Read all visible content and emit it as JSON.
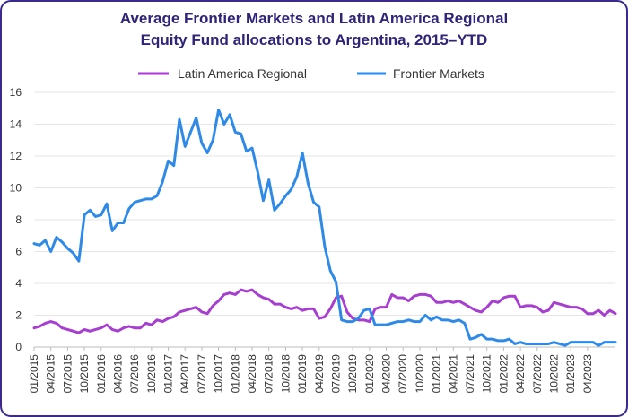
{
  "chart_data": {
    "type": "line",
    "title": [
      "Average Frontier Markets and Latin America Regional",
      "Equity Fund allocations to Argentina, 2015–YTD"
    ],
    "legend_position": "top-center",
    "grid": true,
    "ylim": [
      0,
      16
    ],
    "y_ticks": [
      0,
      2,
      4,
      6,
      8,
      10,
      12,
      14,
      16
    ],
    "x_tick_labels": [
      "01/2015",
      "04/2015",
      "07/2015",
      "10/2015",
      "01/2016",
      "04/2016",
      "07/2016",
      "10/2016",
      "01/2017",
      "04/2017",
      "07/2017",
      "10/2017",
      "01/2018",
      "04/2018",
      "07/2018",
      "10/2018",
      "01/2019",
      "04/2019",
      "07/2019",
      "10/2019",
      "01/2020",
      "04/2020",
      "07/2020",
      "10/2020",
      "01/2021",
      "04/2021",
      "07/2021",
      "10/2021",
      "01/2022",
      "04/2022",
      "07/2022",
      "10/2022",
      "01/2023",
      "04/2023"
    ],
    "series": [
      {
        "name": "Latin America Regional",
        "color": "#a63fcf",
        "values": [
          1.2,
          1.3,
          1.5,
          1.6,
          1.5,
          1.2,
          1.1,
          1.0,
          0.9,
          1.1,
          1.0,
          1.1,
          1.2,
          1.4,
          1.1,
          1.0,
          1.2,
          1.3,
          1.2,
          1.2,
          1.5,
          1.4,
          1.7,
          1.6,
          1.8,
          1.9,
          2.2,
          2.3,
          2.4,
          2.5,
          2.2,
          2.1,
          2.6,
          2.9,
          3.3,
          3.4,
          3.3,
          3.6,
          3.5,
          3.6,
          3.3,
          3.1,
          3.0,
          2.7,
          2.7,
          2.5,
          2.4,
          2.5,
          2.3,
          2.4,
          2.4,
          1.8,
          1.9,
          2.4,
          3.1,
          3.2,
          2.2,
          1.8,
          1.7,
          1.7,
          1.6,
          2.4,
          2.5,
          2.5,
          3.3,
          3.1,
          3.1,
          2.9,
          3.2,
          3.3,
          3.3,
          3.2,
          2.8,
          2.8,
          2.9,
          2.8,
          2.9,
          2.7,
          2.5,
          2.3,
          2.2,
          2.5,
          2.9,
          2.8,
          3.1,
          3.2,
          3.2,
          2.5,
          2.6,
          2.6,
          2.5,
          2.2,
          2.3,
          2.8,
          2.7,
          2.6,
          2.5,
          2.5,
          2.4,
          2.1,
          2.1,
          2.3,
          2.0,
          2.3,
          2.1
        ]
      },
      {
        "name": "Frontier Markets",
        "color": "#2e8ae6",
        "values": [
          6.5,
          6.4,
          6.7,
          6.0,
          6.9,
          6.6,
          6.2,
          5.9,
          5.4,
          8.3,
          8.6,
          8.2,
          8.3,
          9.0,
          7.3,
          7.8,
          7.8,
          8.7,
          9.1,
          9.2,
          9.3,
          9.3,
          9.5,
          10.4,
          11.7,
          11.4,
          14.3,
          12.6,
          13.5,
          14.4,
          12.8,
          12.2,
          13.0,
          14.9,
          14.0,
          14.6,
          13.5,
          13.4,
          12.3,
          12.5,
          11.0,
          9.2,
          10.5,
          8.6,
          9.0,
          9.5,
          9.9,
          10.7,
          12.2,
          10.3,
          9.1,
          8.8,
          6.3,
          4.8,
          4.1,
          1.7,
          1.6,
          1.6,
          1.8,
          2.3,
          2.4,
          1.4,
          1.4,
          1.4,
          1.5,
          1.6,
          1.6,
          1.7,
          1.6,
          1.6,
          2.0,
          1.7,
          1.9,
          1.7,
          1.7,
          1.6,
          1.7,
          1.5,
          0.5,
          0.6,
          0.8,
          0.5,
          0.5,
          0.4,
          0.4,
          0.5,
          0.2,
          0.3,
          0.2,
          0.2,
          0.2,
          0.2,
          0.2,
          0.3,
          0.2,
          0.1,
          0.3,
          0.3,
          0.3,
          0.3,
          0.3,
          0.1,
          0.3,
          0.3,
          0.3
        ]
      }
    ]
  }
}
